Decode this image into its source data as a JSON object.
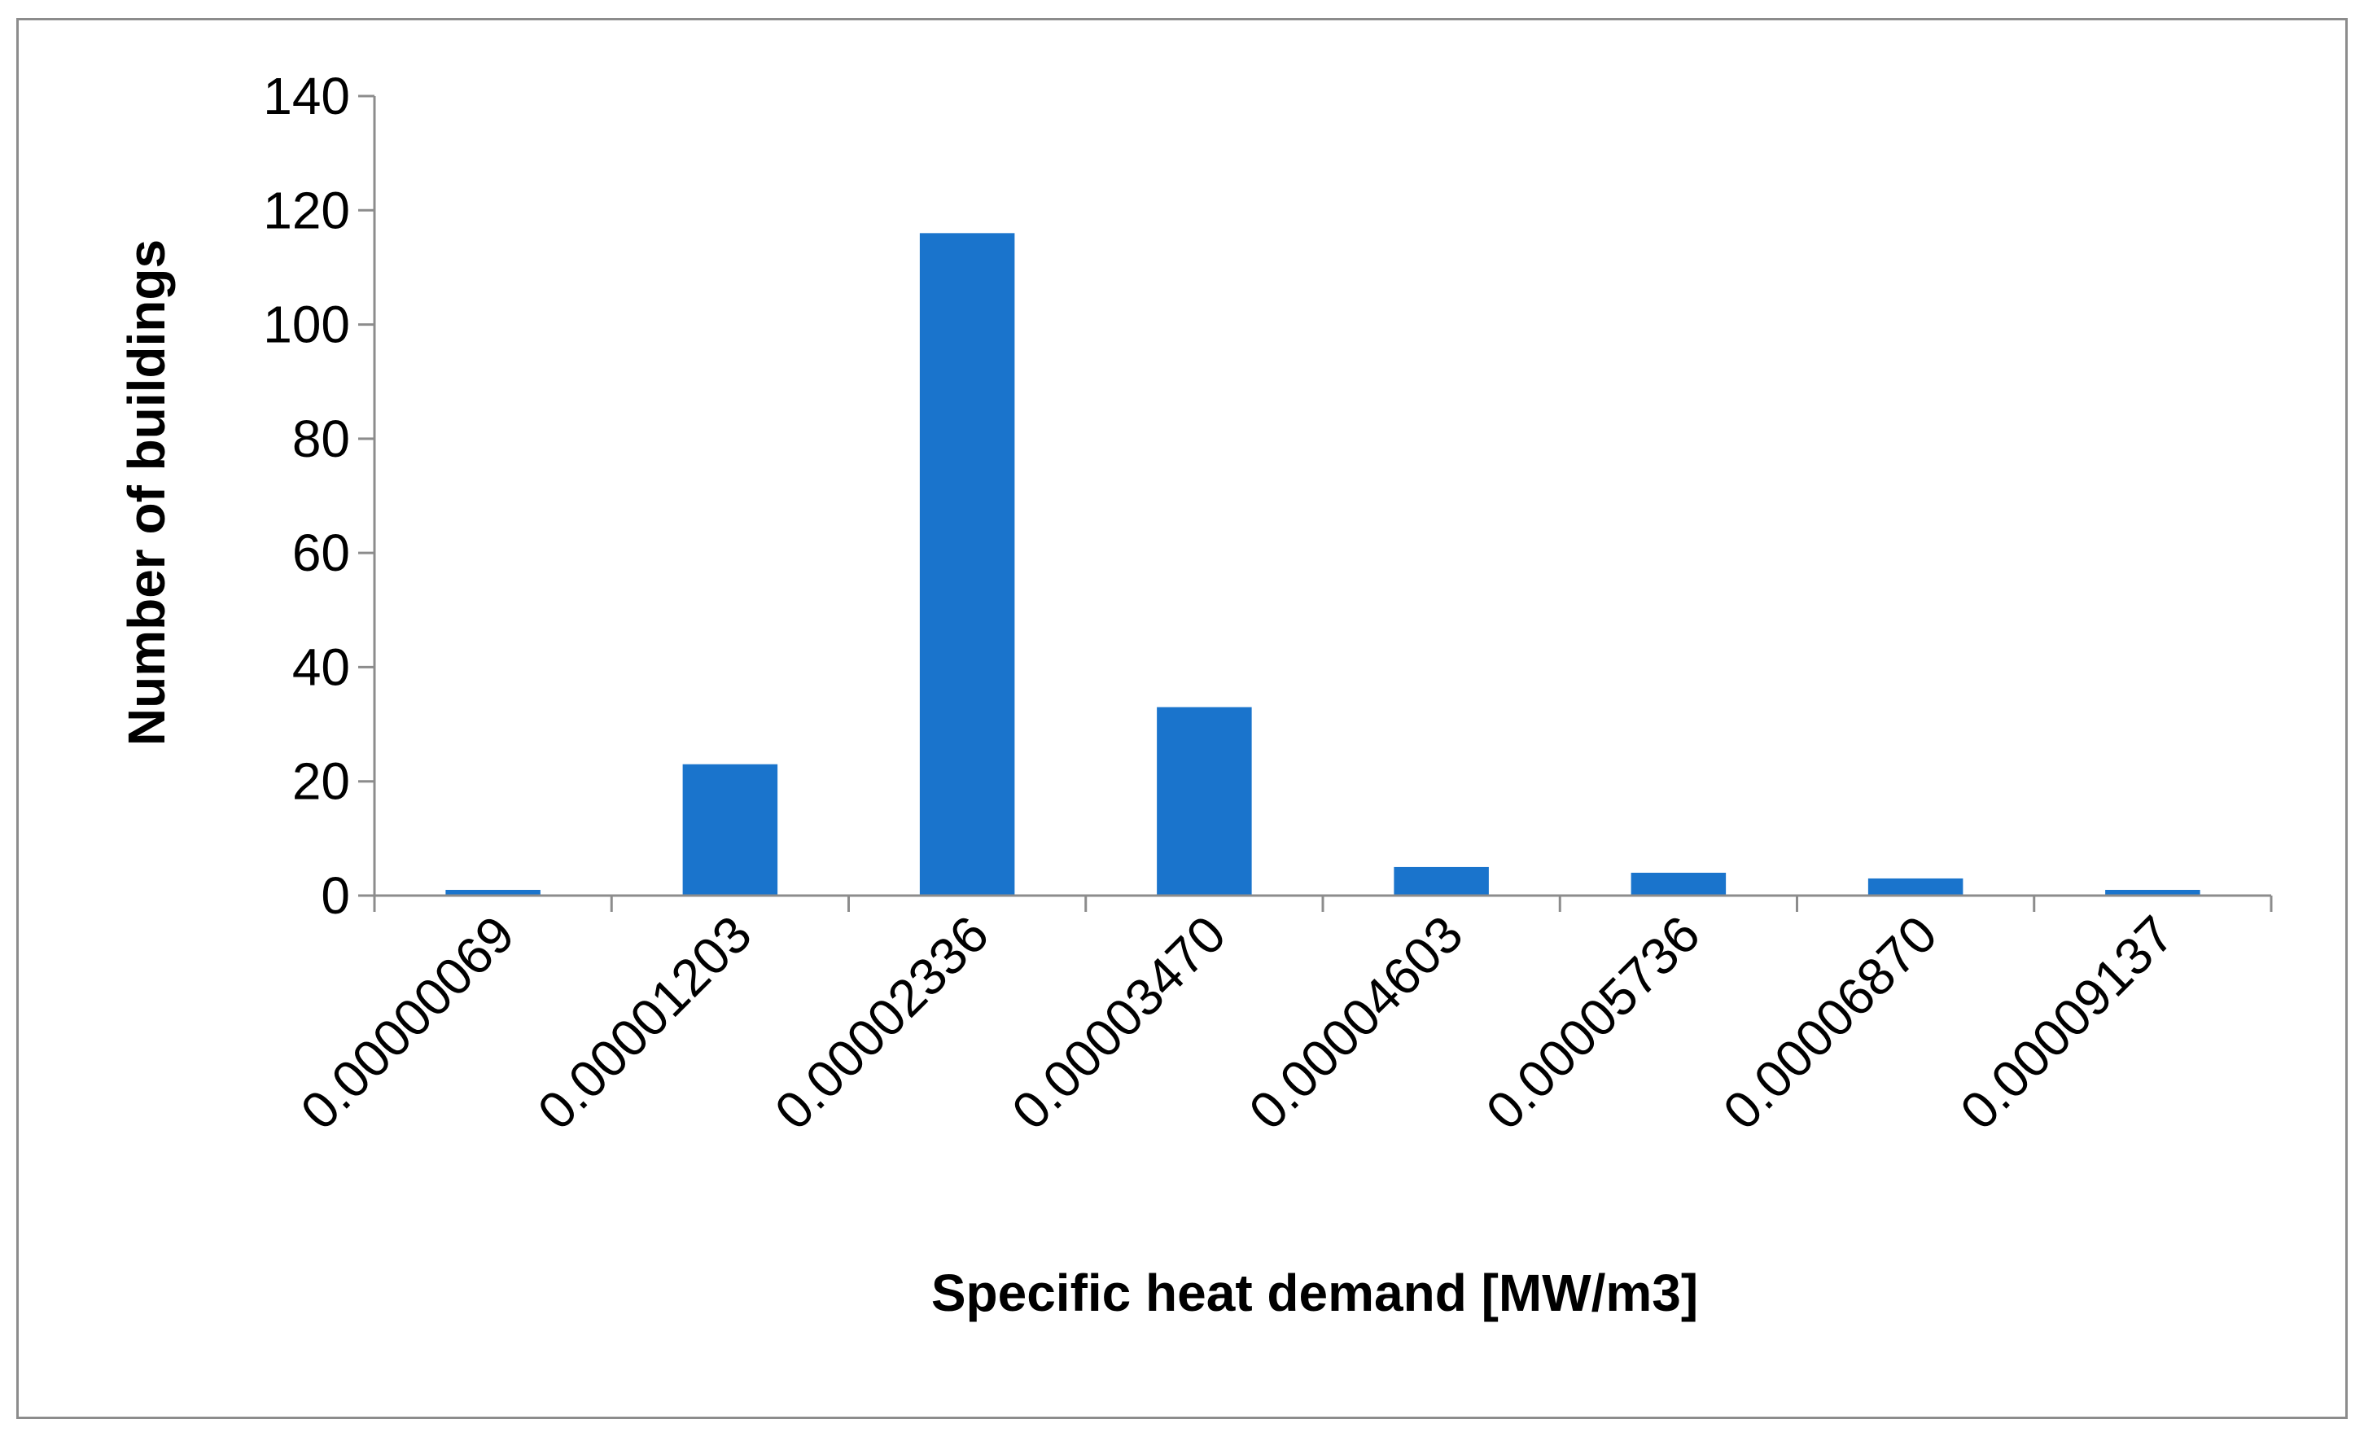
{
  "chart_data": {
    "type": "bar",
    "title": "",
    "xlabel": "Specific heat demand [MW/m3]",
    "ylabel": "Number of buildings",
    "categories": [
      "0.00000069",
      "0.00001203",
      "0.00002336",
      "0.00003470",
      "0.00004603",
      "0.00005736",
      "0.00006870",
      "0.00009137"
    ],
    "values": [
      1,
      23,
      116,
      33,
      5,
      4,
      3,
      1
    ],
    "ylim": [
      0,
      140
    ],
    "yticks": [
      "0",
      "20",
      "40",
      "60",
      "80",
      "100",
      "120",
      "140"
    ],
    "legend": "none",
    "grid": false,
    "bar_color": "#1a74cc",
    "axis_color": "#8c8c8c"
  }
}
